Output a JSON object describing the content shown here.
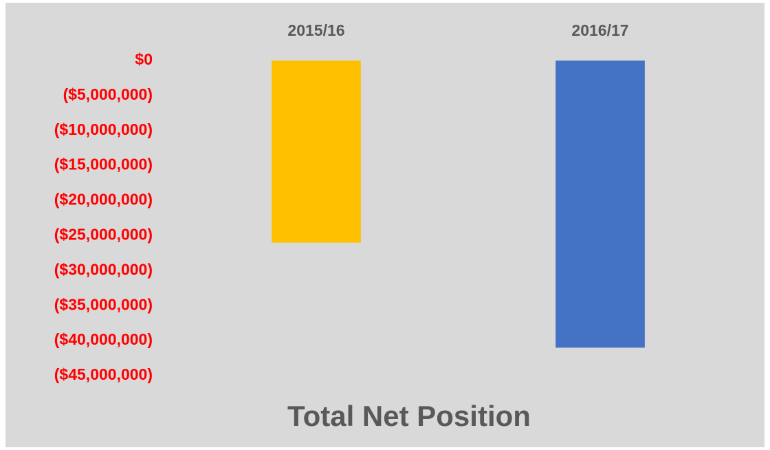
{
  "chart_data": {
    "type": "bar",
    "title": "Total Net Position",
    "categories": [
      "2015/16",
      "2016/17"
    ],
    "values": [
      -26000000,
      -41000000
    ],
    "colors": [
      "#ffc000",
      "#4472c4"
    ],
    "ylim": [
      -45000000,
      0
    ],
    "yticks": [
      {
        "value": 0,
        "label": "$0"
      },
      {
        "value": -5000000,
        "label": "($5,000,000)"
      },
      {
        "value": -10000000,
        "label": "($10,000,000)"
      },
      {
        "value": -15000000,
        "label": "($15,000,000)"
      },
      {
        "value": -20000000,
        "label": "($20,000,000)"
      },
      {
        "value": -25000000,
        "label": "($25,000,000)"
      },
      {
        "value": -30000000,
        "label": "($30,000,000)"
      },
      {
        "value": -35000000,
        "label": "($35,000,000)"
      },
      {
        "value": -40000000,
        "label": "($40,000,000)"
      },
      {
        "value": -45000000,
        "label": "($45,000,000)"
      }
    ],
    "grid": false
  }
}
